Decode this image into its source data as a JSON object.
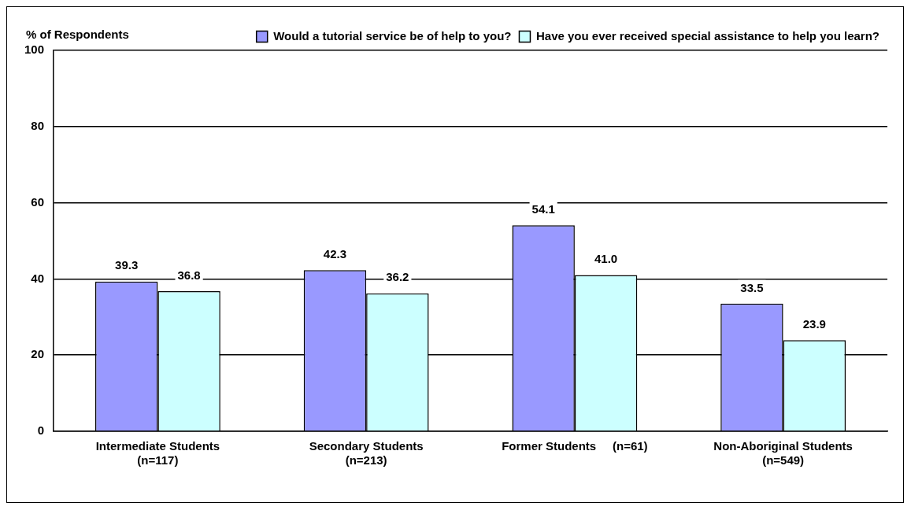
{
  "chart_data": {
    "type": "bar",
    "ylabel": "% of Respondents",
    "categories": [
      "Intermediate Students\n(n=117)",
      "Secondary Students\n(n=213)",
      "Former Students     (n=61)",
      "Non-Aboriginal Students\n(n=549)"
    ],
    "series": [
      {
        "name": "Would a tutorial service be of help to you?",
        "color": "#9999ff",
        "values": [
          39.3,
          42.3,
          54.1,
          33.5
        ],
        "value_labels": [
          "39.3",
          "42.3",
          "54.1",
          "33.5"
        ]
      },
      {
        "name": "Have you ever received special assistance to help you learn?",
        "color": "#ccffff",
        "values": [
          36.8,
          36.2,
          41.0,
          23.9
        ],
        "value_labels": [
          "36.8",
          "36.2",
          "41.0",
          "23.9"
        ]
      }
    ],
    "ylim": [
      0,
      100
    ],
    "yticks": [
      0,
      20,
      40,
      60,
      80,
      100
    ],
    "grid": "y",
    "legend": "top right"
  }
}
